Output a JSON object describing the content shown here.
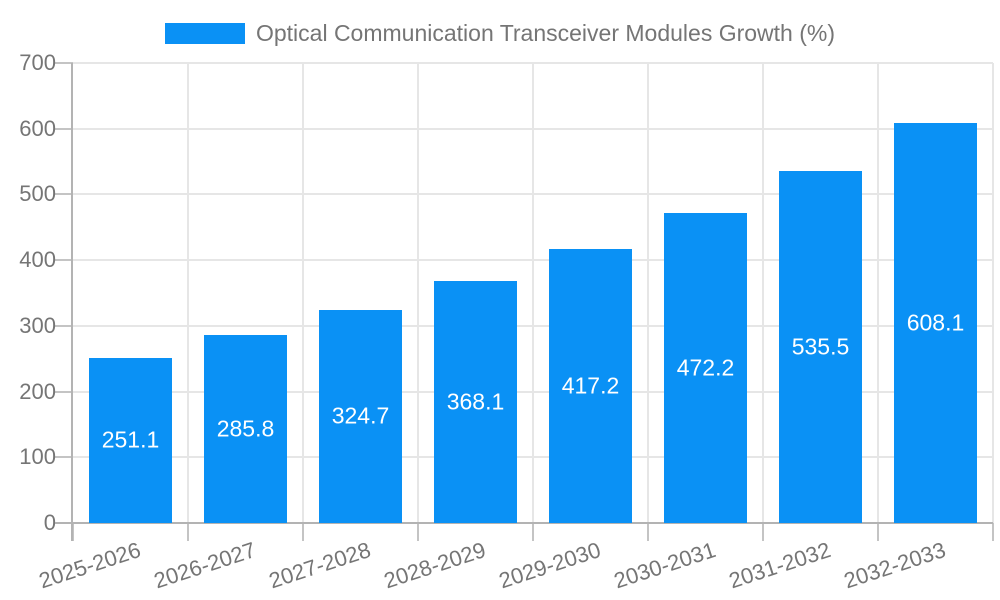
{
  "legend": {
    "label": "Optical Communication Transceiver Modules Growth (%)",
    "swatch_color": "#0a91f5"
  },
  "chart_data": {
    "type": "bar",
    "title": "Optical Communication Transceiver Modules Growth (%)",
    "categories": [
      "2025-2026",
      "2026-2027",
      "2027-2028",
      "2028-2029",
      "2029-2030",
      "2030-2031",
      "2031-2032",
      "2032-2033"
    ],
    "values": [
      251.1,
      285.8,
      324.7,
      368.1,
      417.2,
      472.2,
      535.5,
      608.1
    ],
    "value_labels": [
      "251.1",
      "285.8",
      "324.7",
      "368.1",
      "417.2",
      "472.2",
      "535.5",
      "608.1"
    ],
    "xlabel": "",
    "ylabel": "",
    "ylim": [
      0,
      700
    ],
    "yticks": [
      0,
      100,
      200,
      300,
      400,
      500,
      600,
      700
    ],
    "grid": true,
    "legend_position": "top-center",
    "bar_color": "#0a91f5",
    "value_label_color": "#ffffff",
    "axis_text_color": "#757575",
    "grid_color": "#e6e6e6",
    "axis_line_color": "#b3b3b3",
    "tick_color": "#c4c4c4"
  }
}
